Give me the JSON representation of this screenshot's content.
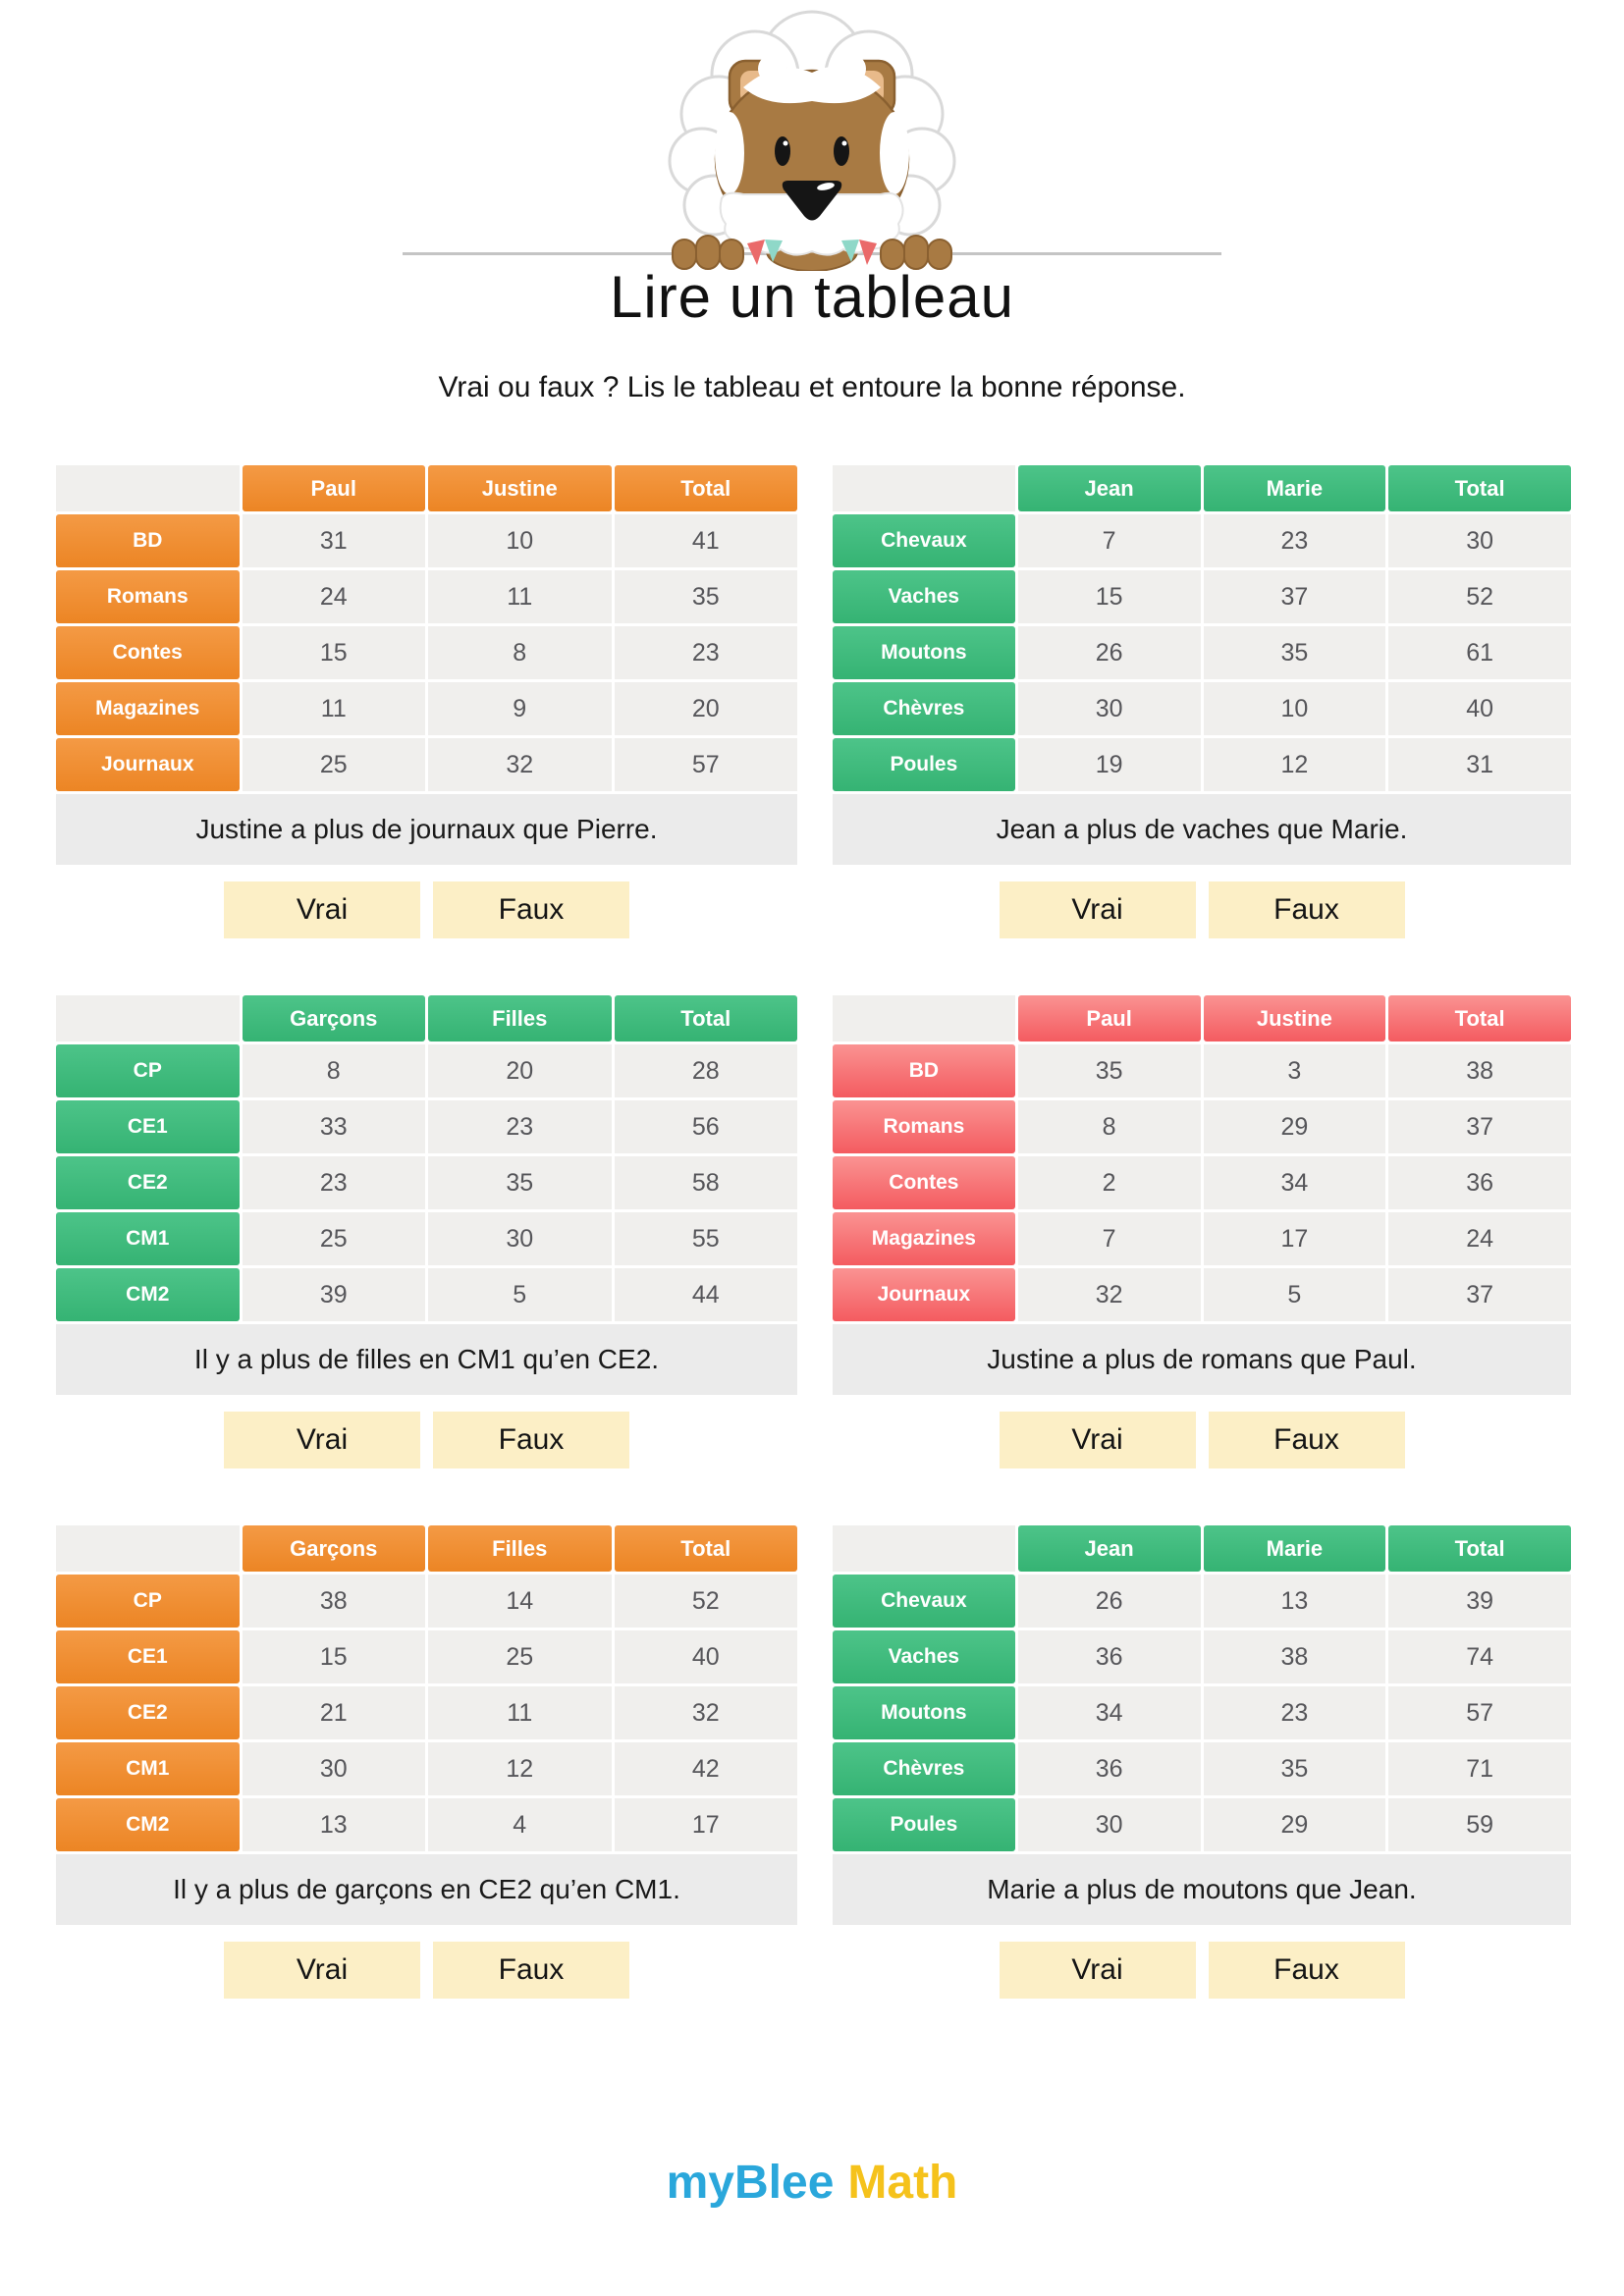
{
  "page": {
    "title": "Lire un tableau",
    "subtitle": "Vrai ou faux ? Lis le tableau et entoure la bonne réponse."
  },
  "logo": {
    "part1": "myBlee",
    "part2": "Math",
    "blue": "#2aa7db",
    "yellow": "#f5c21b"
  },
  "colors": {
    "orange_header": "#ee8c32",
    "green_header": "#3fbc7e",
    "red_header": "#f66a6e",
    "cell_background": "#f0efed",
    "question_band": "#ebebeb",
    "answer_button": "#fcefc6"
  },
  "blocks": [
    {
      "theme": "orange",
      "columns": [
        "Paul",
        "Justine",
        "Total"
      ],
      "rows": [
        {
          "label": "BD",
          "values": [
            31,
            10,
            41
          ]
        },
        {
          "label": "Romans",
          "values": [
            24,
            11,
            35
          ]
        },
        {
          "label": "Contes",
          "values": [
            15,
            8,
            23
          ]
        },
        {
          "label": "Magazines",
          "values": [
            11,
            9,
            20
          ]
        },
        {
          "label": "Journaux",
          "values": [
            25,
            32,
            57
          ]
        }
      ],
      "question": "Justine a plus de journaux que Pierre.",
      "answers": [
        "Vrai",
        "Faux"
      ]
    },
    {
      "theme": "green",
      "columns": [
        "Jean",
        "Marie",
        "Total"
      ],
      "rows": [
        {
          "label": "Chevaux",
          "values": [
            7,
            23,
            30
          ]
        },
        {
          "label": "Vaches",
          "values": [
            15,
            37,
            52
          ]
        },
        {
          "label": "Moutons",
          "values": [
            26,
            35,
            61
          ]
        },
        {
          "label": "Chèvres",
          "values": [
            30,
            10,
            40
          ]
        },
        {
          "label": "Poules",
          "values": [
            19,
            12,
            31
          ]
        }
      ],
      "question": "Jean a plus de vaches que Marie.",
      "answers": [
        "Vrai",
        "Faux"
      ]
    },
    {
      "theme": "green",
      "columns": [
        "Garçons",
        "Filles",
        "Total"
      ],
      "rows": [
        {
          "label": "CP",
          "values": [
            8,
            20,
            28
          ]
        },
        {
          "label": "CE1",
          "values": [
            33,
            23,
            56
          ]
        },
        {
          "label": "CE2",
          "values": [
            23,
            35,
            58
          ]
        },
        {
          "label": "CM1",
          "values": [
            25,
            30,
            55
          ]
        },
        {
          "label": "CM2",
          "values": [
            39,
            5,
            44
          ]
        }
      ],
      "question": "Il y a plus de filles en CM1 qu’en CE2.",
      "answers": [
        "Vrai",
        "Faux"
      ]
    },
    {
      "theme": "red",
      "columns": [
        "Paul",
        "Justine",
        "Total"
      ],
      "rows": [
        {
          "label": "BD",
          "values": [
            35,
            3,
            38
          ]
        },
        {
          "label": "Romans",
          "values": [
            8,
            29,
            37
          ]
        },
        {
          "label": "Contes",
          "values": [
            2,
            34,
            36
          ]
        },
        {
          "label": "Magazines",
          "values": [
            7,
            17,
            24
          ]
        },
        {
          "label": "Journaux",
          "values": [
            32,
            5,
            37
          ]
        }
      ],
      "question": "Justine a plus de romans que Paul.",
      "answers": [
        "Vrai",
        "Faux"
      ]
    },
    {
      "theme": "orange",
      "columns": [
        "Garçons",
        "Filles",
        "Total"
      ],
      "rows": [
        {
          "label": "CP",
          "values": [
            38,
            14,
            52
          ]
        },
        {
          "label": "CE1",
          "values": [
            15,
            25,
            40
          ]
        },
        {
          "label": "CE2",
          "values": [
            21,
            11,
            32
          ]
        },
        {
          "label": "CM1",
          "values": [
            30,
            12,
            42
          ]
        },
        {
          "label": "CM2",
          "values": [
            13,
            4,
            17
          ]
        }
      ],
      "question": "Il y a plus de garçons en CE2 qu’en CM1.",
      "answers": [
        "Vrai",
        "Faux"
      ]
    },
    {
      "theme": "green",
      "columns": [
        "Jean",
        "Marie",
        "Total"
      ],
      "rows": [
        {
          "label": "Chevaux",
          "values": [
            26,
            13,
            39
          ]
        },
        {
          "label": "Vaches",
          "values": [
            36,
            38,
            74
          ]
        },
        {
          "label": "Moutons",
          "values": [
            34,
            23,
            57
          ]
        },
        {
          "label": "Chèvres",
          "values": [
            36,
            35,
            71
          ]
        },
        {
          "label": "Poules",
          "values": [
            30,
            29,
            59
          ]
        }
      ],
      "question": "Marie a plus de moutons que Jean.",
      "answers": [
        "Vrai",
        "Faux"
      ]
    }
  ]
}
